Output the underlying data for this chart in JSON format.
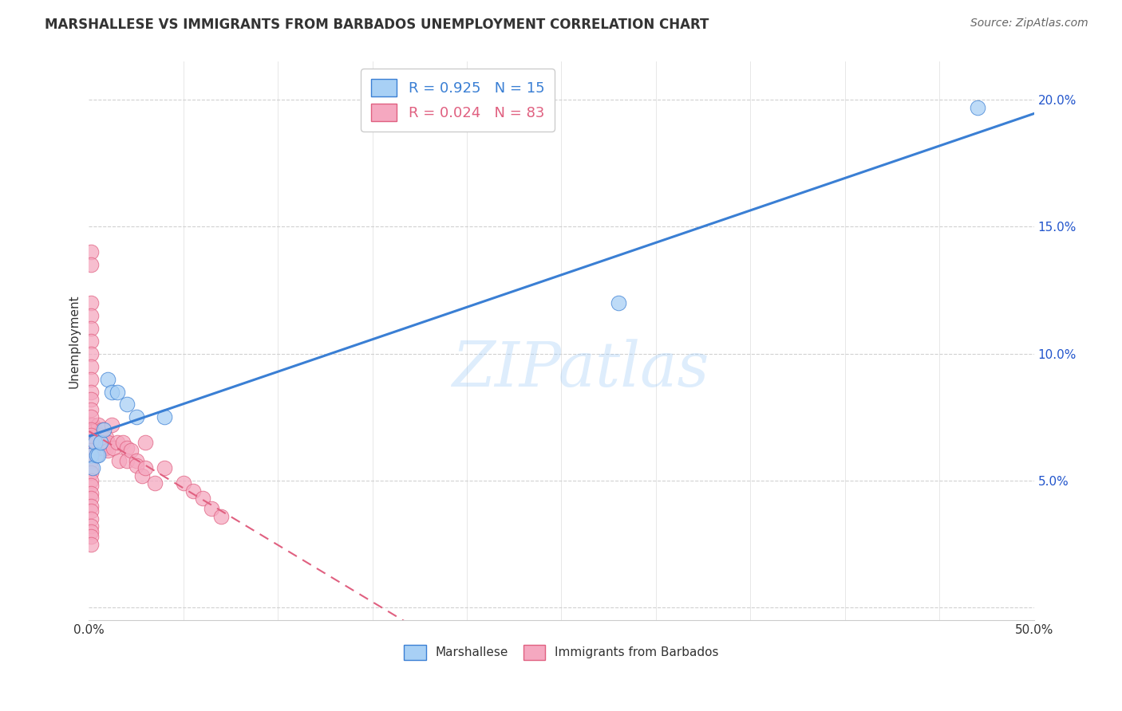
{
  "title": "MARSHALLESE VS IMMIGRANTS FROM BARBADOS UNEMPLOYMENT CORRELATION CHART",
  "source": "Source: ZipAtlas.com",
  "ylabel": "Unemployment",
  "watermark": "ZIPatlas",
  "marshallese_R": 0.925,
  "marshallese_N": 15,
  "barbados_R": 0.024,
  "barbados_N": 83,
  "marshallese_color": "#a8d0f5",
  "barbados_color": "#f5a8c0",
  "marshallese_line_color": "#3a7fd4",
  "barbados_line_color": "#e06080",
  "xlim": [
    0.0,
    0.5
  ],
  "ylim": [
    -0.005,
    0.215
  ],
  "yticks": [
    0.0,
    0.05,
    0.1,
    0.15,
    0.2
  ],
  "ytick_labels": [
    "",
    "5.0%",
    "10.0%",
    "15.0%",
    "20.0%"
  ],
  "marshallese_x": [
    0.001,
    0.002,
    0.003,
    0.004,
    0.005,
    0.006,
    0.008,
    0.01,
    0.012,
    0.015,
    0.02,
    0.025,
    0.04,
    0.28,
    0.47
  ],
  "marshallese_y": [
    0.06,
    0.055,
    0.065,
    0.06,
    0.06,
    0.065,
    0.07,
    0.09,
    0.085,
    0.085,
    0.08,
    0.075,
    0.075,
    0.12,
    0.197
  ],
  "barbados_x": [
    0.001,
    0.001,
    0.001,
    0.001,
    0.002,
    0.002,
    0.002,
    0.002,
    0.002,
    0.003,
    0.003,
    0.003,
    0.003,
    0.003,
    0.004,
    0.004,
    0.004,
    0.005,
    0.005,
    0.005,
    0.006,
    0.006,
    0.007,
    0.007,
    0.007,
    0.008,
    0.008,
    0.009,
    0.009,
    0.01,
    0.01,
    0.012,
    0.013,
    0.015,
    0.016,
    0.018,
    0.02,
    0.02,
    0.022,
    0.025,
    0.025,
    0.028,
    0.03,
    0.03,
    0.035,
    0.04,
    0.05,
    0.055,
    0.06,
    0.065,
    0.07,
    0.001,
    0.001,
    0.001,
    0.001,
    0.001,
    0.001,
    0.001,
    0.001,
    0.001,
    0.001,
    0.001,
    0.001,
    0.001,
    0.001,
    0.001,
    0.001,
    0.001,
    0.001,
    0.001,
    0.001,
    0.001,
    0.001,
    0.001,
    0.001,
    0.001,
    0.001,
    0.001,
    0.001,
    0.001,
    0.001,
    0.001,
    0.001
  ],
  "barbados_y": [
    0.07,
    0.068,
    0.072,
    0.065,
    0.068,
    0.072,
    0.065,
    0.07,
    0.063,
    0.068,
    0.065,
    0.07,
    0.063,
    0.06,
    0.068,
    0.065,
    0.06,
    0.072,
    0.068,
    0.063,
    0.068,
    0.065,
    0.07,
    0.067,
    0.063,
    0.065,
    0.063,
    0.067,
    0.063,
    0.065,
    0.062,
    0.072,
    0.063,
    0.065,
    0.058,
    0.065,
    0.063,
    0.058,
    0.062,
    0.058,
    0.056,
    0.052,
    0.065,
    0.055,
    0.049,
    0.055,
    0.049,
    0.046,
    0.043,
    0.039,
    0.036,
    0.14,
    0.135,
    0.12,
    0.115,
    0.11,
    0.105,
    0.1,
    0.095,
    0.09,
    0.085,
    0.082,
    0.078,
    0.075,
    0.07,
    0.068,
    0.065,
    0.062,
    0.06,
    0.058,
    0.055,
    0.053,
    0.05,
    0.048,
    0.045,
    0.043,
    0.04,
    0.038,
    0.035,
    0.032,
    0.03,
    0.028,
    0.025
  ],
  "title_fontsize": 12,
  "source_fontsize": 10,
  "label_fontsize": 11,
  "legend_fontsize": 13,
  "tick_fontsize": 11
}
